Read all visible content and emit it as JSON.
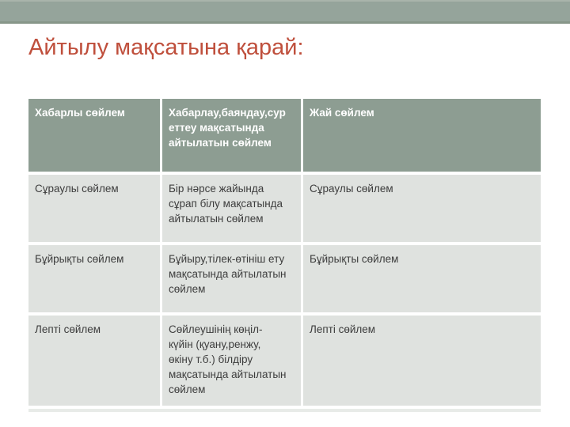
{
  "slide": {
    "title": "Айтылу мақсатына қарай:"
  },
  "colors": {
    "top_bar": "#95a49b",
    "top_bar_border": "#879689",
    "table_header_bg": "#8d9d92",
    "table_header_text": "#ffffff",
    "table_body_bg": "#dfe2df",
    "table_body_text": "#3d3d3d",
    "title_text": "#bf4f3c",
    "table_bottom_band": "#e8ebe8",
    "page_background": "#ffffff"
  },
  "table": {
    "header": [
      "Хабарлы сөйлем",
      "Хабарлау,баяндау,сур\nеттеу мақсатында\nайтылатын сөйлем",
      "Жай сөйлем"
    ],
    "rows": [
      [
        "Сұраулы сөйлем",
        "Бір нәрсе жайында\nсұрап білу мақсатында\nайтылатын сөйлем",
        "Сұраулы сөйлем"
      ],
      [
        "Бұйрықты сөйлем",
        "Бұйыру,тілек-өтініш ету\nмақсатында айтылатын\nсөйлем",
        "Бұйрықты сөйлем"
      ],
      [
        "Лепті сөйлем",
        "Сөйлеушінің көңіл-\nкүйін (қуану,ренжу,\nөкіну т.б.) білдіру\nмақсатында айтылатын\nсөйлем",
        "Лепті сөйлем"
      ]
    ]
  }
}
